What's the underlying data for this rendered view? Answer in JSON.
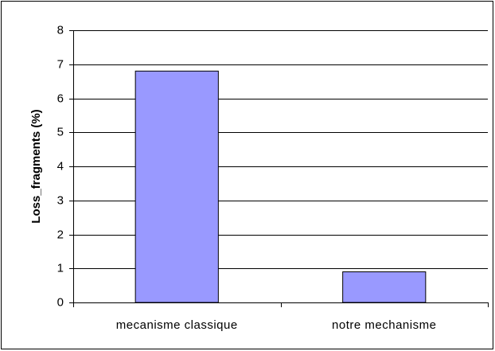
{
  "chart_data": {
    "type": "bar",
    "y_label": "Loss_fragments (%)",
    "categories": [
      "mecanisme classique",
      "notre mechanisme"
    ],
    "values": [
      6.8,
      0.9
    ],
    "color": "#9999ff",
    "ylim": [
      0,
      8
    ],
    "yticks": [
      0,
      1,
      2,
      3,
      4,
      5,
      6,
      7,
      8
    ],
    "grid": true
  }
}
